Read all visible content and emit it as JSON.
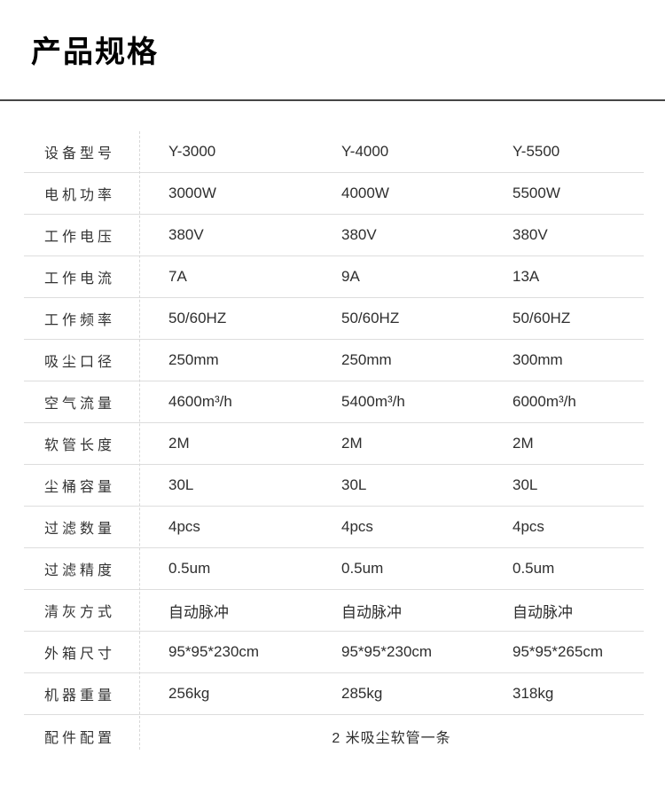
{
  "page": {
    "title": "产品规格"
  },
  "table": {
    "rows": [
      {
        "label": "设备型号",
        "values": [
          "Y-3000",
          "Y-4000",
          "Y-5500"
        ]
      },
      {
        "label": "电机功率",
        "values": [
          "3000W",
          "4000W",
          "5500W"
        ]
      },
      {
        "label": "工作电压",
        "values": [
          "380V",
          "380V",
          "380V"
        ]
      },
      {
        "label": "工作电流",
        "values": [
          "7A",
          "9A",
          "13A"
        ]
      },
      {
        "label": "工作频率",
        "values": [
          "50/60HZ",
          "50/60HZ",
          "50/60HZ"
        ]
      },
      {
        "label": "吸尘口径",
        "values": [
          "250mm",
          "250mm",
          "300mm"
        ]
      },
      {
        "label": "空气流量",
        "values": [
          "4600m³/h",
          "5400m³/h",
          "6000m³/h"
        ]
      },
      {
        "label": "软管长度",
        "values": [
          "2M",
          "2M",
          "2M"
        ]
      },
      {
        "label": "尘桶容量",
        "values": [
          "30L",
          "30L",
          "30L"
        ]
      },
      {
        "label": "过滤数量",
        "values": [
          "4pcs",
          "4pcs",
          "4pcs"
        ]
      },
      {
        "label": "过滤精度",
        "values": [
          "0.5um",
          "0.5um",
          "0.5um"
        ]
      },
      {
        "label": "清灰方式",
        "values": [
          "自动脉冲",
          "自动脉冲",
          "自动脉冲"
        ]
      },
      {
        "label": "外箱尺寸",
        "values": [
          "95*95*230cm",
          "95*95*230cm",
          "95*95*265cm"
        ]
      },
      {
        "label": "机器重量",
        "values": [
          "256kg",
          "285kg",
          "318kg"
        ]
      }
    ],
    "footer_row": {
      "label": "配件配置",
      "value": "2 米吸尘软管一条"
    }
  },
  "colors": {
    "title_text": "#000000",
    "title_underline": "#464646",
    "label_text": "#333333",
    "value_text": "#2e2e2e",
    "row_divider": "#dddddd",
    "column_divider_dashed": "#d8d8d8",
    "background": "#ffffff"
  }
}
